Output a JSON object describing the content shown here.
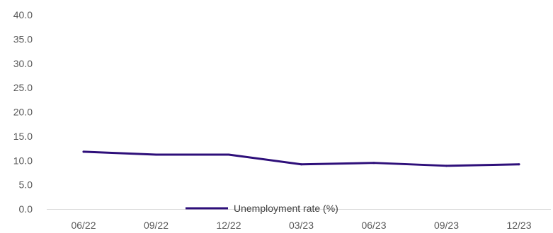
{
  "chart_data": {
    "type": "line",
    "categories": [
      "06/22",
      "09/22",
      "12/22",
      "03/23",
      "06/23",
      "09/23",
      "12/23"
    ],
    "series": [
      {
        "name": "Unemployment rate (%)",
        "values": [
          11.8,
          11.2,
          11.2,
          9.2,
          9.5,
          8.9,
          9.2
        ],
        "color": "#2e0f7a"
      }
    ],
    "ylim": [
      0,
      40
    ],
    "yticks": [
      "0.0",
      "5.0",
      "10.0",
      "15.0",
      "20.0",
      "25.0",
      "30.0",
      "35.0",
      "40.0"
    ],
    "grid": false,
    "legend": "bottom",
    "axis_color": "#d9d9d9"
  }
}
